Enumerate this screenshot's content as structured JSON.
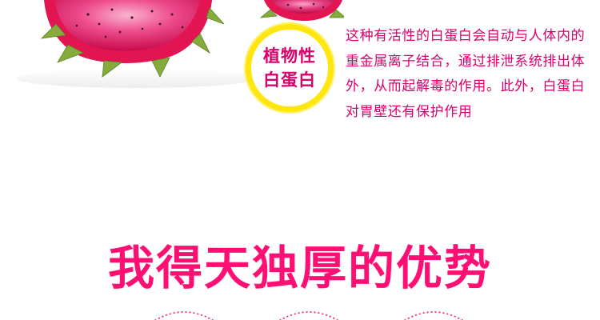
{
  "badge": {
    "line1": "植物性",
    "line2": "白蛋白",
    "ring_color": "#ffe60f",
    "text_color": "#d9006c"
  },
  "description": "这种有活性的白蛋白会自动与人体内的重金属离子结合，通过排泄系统排出体外，从而起解毒的作用。此外，白蛋白对胃壁还有保护作用",
  "headline": "我得天独厚的优势",
  "colors": {
    "accent": "#ff0f73",
    "fruit_skin": "#e8144f",
    "fruit_flesh": "#f04a8a",
    "leaf": "#7fa63a"
  }
}
